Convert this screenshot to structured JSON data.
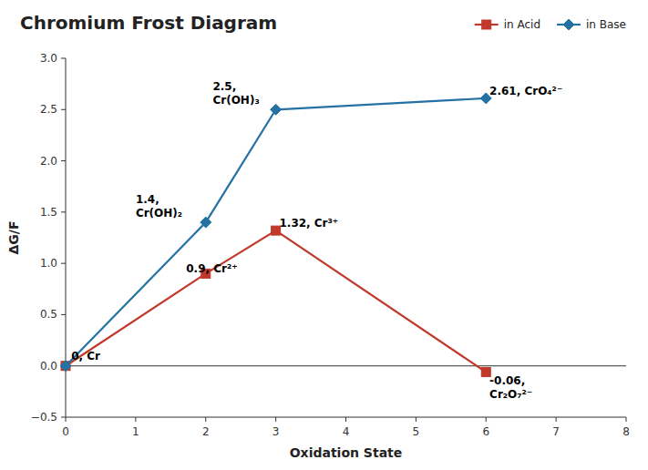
{
  "chart_data": {
    "type": "line",
    "title": "Chromium Frost Diagram",
    "x_label": "Oxidation State",
    "y_label": "ΔG/F",
    "x": [
      0,
      2,
      3,
      6
    ],
    "series": [
      {
        "name": "in Acid",
        "color": "#c0392b",
        "marker": "square",
        "values": [
          0,
          0.9,
          1.32,
          -0.06
        ]
      },
      {
        "name": "in Base",
        "color": "#2472a4",
        "marker": "diamond",
        "values": [
          0,
          1.4,
          2.5,
          2.61
        ]
      }
    ],
    "xlim": [
      0,
      8
    ],
    "ylim": [
      -0.5,
      3.0
    ],
    "xticks": [
      0,
      1,
      2,
      3,
      4,
      5,
      6,
      7,
      8
    ],
    "yticks": [
      {
        "value": -0.5,
        "label": "−0.5"
      },
      {
        "value": 0,
        "label": "0.0"
      },
      {
        "value": 0.5,
        "label": "0.5"
      },
      {
        "value": 1,
        "label": "1.0"
      },
      {
        "value": 1.5,
        "label": "1.5"
      },
      {
        "value": 2,
        "label": "2.0"
      },
      {
        "value": 2.5,
        "label": "2.5"
      },
      {
        "value": 3,
        "label": "3.0"
      }
    ],
    "grid": false,
    "legend": "upper right",
    "annotations": [
      {
        "x": 0.08,
        "y": 0.02,
        "text": "0, Cr"
      },
      {
        "x": 1.72,
        "y": 0.88,
        "text": "0.9, Cr²⁺"
      },
      {
        "x": 3.05,
        "y": 1.32,
        "text": "1.32, Cr³⁺"
      },
      {
        "x": 6.05,
        "y": -0.06,
        "text": "-0.06,\nCr₂O₇²⁻"
      },
      {
        "x": 1.0,
        "y": 1.42,
        "text": "1.4,\nCr(OH)₂"
      },
      {
        "x": 2.1,
        "y": 2.52,
        "text": "2.5,\nCr(OH)₃"
      },
      {
        "x": 6.05,
        "y": 2.61,
        "text": "2.61, CrO₄²⁻"
      }
    ]
  }
}
